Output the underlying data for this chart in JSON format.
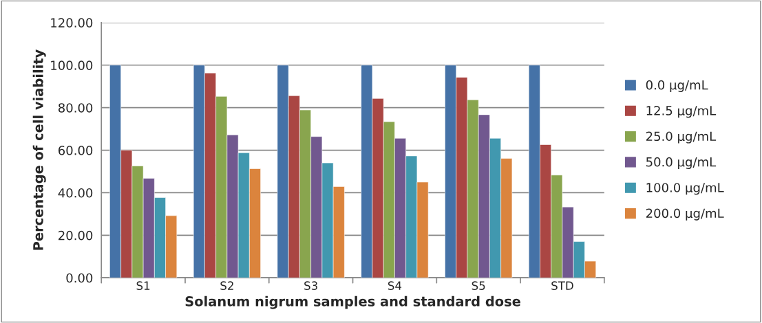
{
  "chart_data": {
    "type": "bar",
    "xlabel": "Solanum nigrum samples and standard dose",
    "ylabel": "Percentage of cell viability",
    "categories": [
      "S1",
      "S2",
      "S3",
      "S4",
      "S5",
      "STD"
    ],
    "series": [
      {
        "name": "0.0 µg/mL",
        "color": "#4572a7",
        "values": [
          100,
          100,
          100,
          100,
          100,
          100
        ]
      },
      {
        "name": "12.5 µg/mL",
        "color": "#aa4643",
        "values": [
          60.0,
          96.3,
          85.6,
          84.3,
          94.3,
          62.6
        ]
      },
      {
        "name": "25.0 µg/mL",
        "color": "#89a54e",
        "values": [
          52.6,
          85.3,
          78.9,
          73.4,
          83.7,
          48.3
        ]
      },
      {
        "name": "50.0 µg/mL",
        "color": "#71588f",
        "values": [
          46.8,
          67.2,
          66.4,
          65.6,
          76.7,
          33.3
        ]
      },
      {
        "name": "100.0 µg/mL",
        "color": "#4198af",
        "values": [
          37.7,
          58.8,
          54.0,
          57.3,
          65.6,
          17.0
        ]
      },
      {
        "name": "200.0 µg/mL",
        "color": "#db843d",
        "values": [
          29.2,
          51.3,
          42.9,
          45.0,
          56.1,
          7.8
        ]
      }
    ],
    "ylim": [
      0,
      120
    ],
    "yticks": [
      {
        "value": 0,
        "label": "0.00"
      },
      {
        "value": 20,
        "label": "20.00"
      },
      {
        "value": 40,
        "label": "40.00"
      },
      {
        "value": 60,
        "label": "60.00"
      },
      {
        "value": 80,
        "label": "80.00"
      },
      {
        "value": 100,
        "label": "100.00"
      },
      {
        "value": 120,
        "label": "120.00"
      }
    ],
    "grid": "y",
    "legend": "right"
  }
}
